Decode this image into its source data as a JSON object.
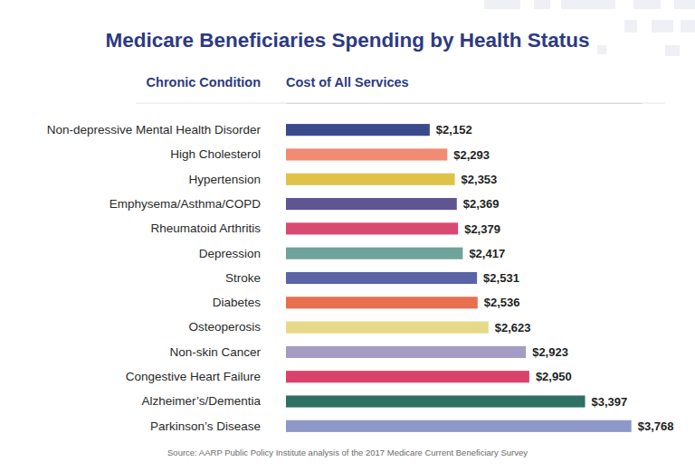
{
  "chart_data": {
    "type": "bar",
    "orientation": "horizontal",
    "title": "Medicare Beneficiaries Spending by Health Status",
    "y_label": "Chronic Condition",
    "x_label": "Cost of All Services",
    "source": "Source: AARP Public Policy Institute analysis of the 2017 Medicare Current Beneficiary Survey",
    "categories": [
      "Non-depressive Mental Health Disorder",
      "High Cholesterol",
      "Hypertension",
      "Emphysema/Asthma/COPD",
      "Rheumatoid Arthritis",
      "Depression",
      "Stroke",
      "Diabetes",
      "Osteoperosis",
      "Non-skin Cancer",
      "Congestive Heart Failure",
      "Alzheimer’s/Dementia",
      "Parkinson’s Disease"
    ],
    "values": [
      2152,
      2293,
      2353,
      2369,
      2379,
      2417,
      2531,
      2536,
      2623,
      2923,
      2950,
      3397,
      3768
    ],
    "value_labels": [
      "$2,152",
      "$2,293",
      "$2,353",
      "$2,369",
      "$2,379",
      "$2,417",
      "$2,531",
      "$2,536",
      "$2,623",
      "$2,923",
      "$2,950",
      "$3,397",
      "$3,768"
    ],
    "colors": [
      "#3b4a8c",
      "#f08c73",
      "#dfc24a",
      "#5e5592",
      "#d94a72",
      "#6fa39b",
      "#5a64a6",
      "#e8704e",
      "#e6d98a",
      "#a49cc4",
      "#d9436b",
      "#2e7064",
      "#8e98c8"
    ],
    "xlim": [
      1000,
      3850
    ],
    "data_labels": true,
    "tick_labels": "y",
    "grid": false
  }
}
